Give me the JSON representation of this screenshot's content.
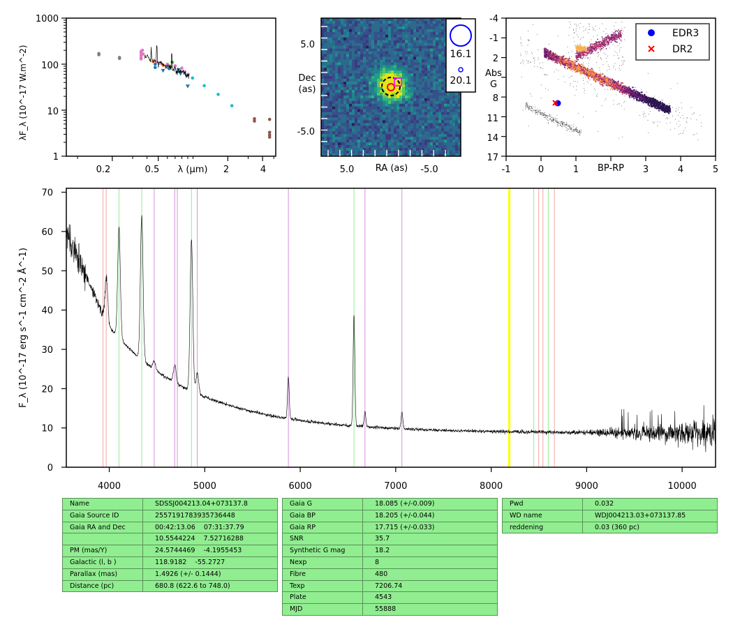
{
  "sed_panel": {
    "ylabel": "λF_λ (10^-17 W.m^-2)",
    "xlabel": "λ (μm)",
    "yticks": [
      "1",
      "10",
      "100",
      "1000"
    ],
    "xticks": [
      "0.2",
      "0.5",
      "2",
      "4"
    ],
    "colors": {
      "grey": "#7f7f7f",
      "pink": "#e377c2",
      "orange": "#ff7f0e",
      "green": "#2ca02c",
      "blue": "#1f77b4",
      "cyan": "#17becf",
      "brown": "#8c564b"
    }
  },
  "image_panel": {
    "ylabel": [
      "Dec",
      "(as)"
    ],
    "xlabel": "RA (as)",
    "yticks": [
      "5.0",
      "-5.0"
    ],
    "xticks": [
      "5.0",
      "-5.0"
    ],
    "legend": [
      "16.1",
      "20.1"
    ]
  },
  "hr_panel": {
    "ylabel": [
      "Abs",
      "G"
    ],
    "xlabel": "BP-RP",
    "yticks": [
      "-4",
      "-1",
      "2",
      "5",
      "8",
      "11",
      "14",
      "17"
    ],
    "xticks": [
      "-1",
      "0",
      "1",
      "2",
      "3",
      "4",
      "5"
    ],
    "legend": [
      {
        "label": "EDR3",
        "color": "#0000ff"
      },
      {
        "label": "DR2",
        "color": "#ff0000"
      }
    ],
    "star": {
      "bp_rp": 0.45,
      "abs_g": 9.0
    }
  },
  "chart_data": {
    "type": "line",
    "ylabel": "F_λ (10^-17 erg s^-1 cm^-2 Å^-1)",
    "xlim": [
      3550,
      10350
    ],
    "ylim": [
      0,
      71
    ],
    "xticks": [
      "4000",
      "5000",
      "6000",
      "7000",
      "8000",
      "9000",
      "10000"
    ],
    "yticks": [
      "0",
      "10",
      "20",
      "30",
      "40",
      "50",
      "60",
      "70"
    ],
    "emission_lines": [
      {
        "center": 3970,
        "peak": 48
      },
      {
        "center": 4102,
        "peak": 61
      },
      {
        "center": 4340,
        "peak": 64
      },
      {
        "center": 4471,
        "peak": 27
      },
      {
        "center": 4686,
        "peak": 26
      },
      {
        "center": 4861,
        "peak": 58
      },
      {
        "center": 4922,
        "peak": 24
      },
      {
        "center": 5876,
        "peak": 23
      },
      {
        "center": 6563,
        "peak": 39
      },
      {
        "center": 6678,
        "peak": 14
      },
      {
        "center": 7065,
        "peak": 14
      }
    ],
    "marker_lines": [
      {
        "x": 3934,
        "color": "#f4a6a6"
      },
      {
        "x": 3968,
        "color": "#f4a6a6"
      },
      {
        "x": 4102,
        "color": "#90ee90"
      },
      {
        "x": 4340,
        "color": "#90ee90"
      },
      {
        "x": 4471,
        "color": "#da8fe0"
      },
      {
        "x": 4686,
        "color": "#da8fe0"
      },
      {
        "x": 4713,
        "color": "#da8fe0"
      },
      {
        "x": 4861,
        "color": "#90ee90"
      },
      {
        "x": 4922,
        "color": "#da8fe0"
      },
      {
        "x": 5876,
        "color": "#da8fe0"
      },
      {
        "x": 6563,
        "color": "#90ee90"
      },
      {
        "x": 6678,
        "color": "#da8fe0"
      },
      {
        "x": 7065,
        "color": "#da8fe0"
      },
      {
        "x": 8183,
        "color": "#ffff00"
      },
      {
        "x": 8195,
        "color": "#ffff00"
      },
      {
        "x": 8446,
        "color": "#90ee90"
      },
      {
        "x": 8498,
        "color": "#f4a6a6"
      },
      {
        "x": 8542,
        "color": "#f4a6a6"
      },
      {
        "x": 8598,
        "color": "#90ee90"
      },
      {
        "x": 8662,
        "color": "#f4a6a6"
      }
    ]
  },
  "table1": [
    [
      "Name",
      "SDSSJ004213.04+073137.8"
    ],
    [
      "Gaia Source ID",
      "2557191783935736448"
    ],
    [
      "Gaia RA and Dec",
      "00:42:13.06    07:31:37.79"
    ],
    [
      "",
      "10.5544224    7.52716288"
    ],
    [
      "PM (mas/Y)",
      "24.5744469    -4.1955453"
    ],
    [
      "Galactic (l, b )",
      "118.9182    -55.2727"
    ],
    [
      "Parallax (mas)",
      "1.4926 (+/- 0.1444)"
    ],
    [
      "Distance (pc)",
      "680.8 (622.6 to 748.0)"
    ]
  ],
  "table2": [
    [
      "Gaia G",
      "18.085 (+/-0.009)"
    ],
    [
      "Gaia BP",
      "18.205 (+/-0.044)"
    ],
    [
      "Gaia RP",
      "17.715 (+/-0.033)"
    ],
    [
      "SNR",
      "35.7"
    ],
    [
      "Synthetic G mag",
      "18.2"
    ],
    [
      "Nexp",
      "8"
    ],
    [
      "Fibre",
      "480"
    ],
    [
      "Texp",
      "7206.74"
    ],
    [
      "Plate",
      "4543"
    ],
    [
      "MJD",
      "55888"
    ]
  ],
  "table3": [
    [
      "Pwd",
      "0.032"
    ],
    [
      "WD name",
      "WDJ004213.03+073137.85"
    ],
    [
      "reddening",
      "0.03 (360 pc)"
    ]
  ]
}
